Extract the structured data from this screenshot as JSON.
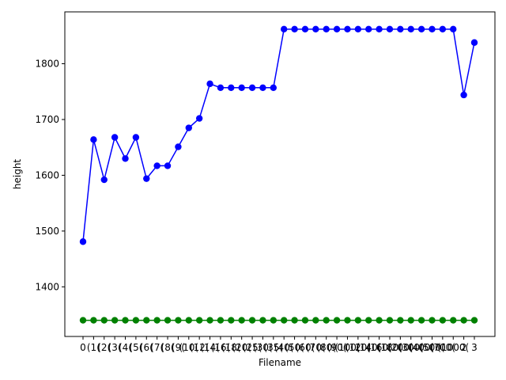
{
  "chart_data": {
    "type": "line",
    "title": "",
    "xlabel": "Filename",
    "ylabel": "height",
    "ylim": [
      1311,
      1893
    ],
    "yticks": [
      1400,
      1500,
      1600,
      1700,
      1800
    ],
    "grid": false,
    "legend": "none",
    "categories": [
      "0",
      "(1(",
      "(2(",
      "(3(",
      "(4(",
      "(5(",
      "(6(",
      "(7(",
      "(8(",
      "(9(",
      "(10(",
      "(12(",
      "(14(",
      "(16(",
      "(18(",
      "(20(",
      "(25(",
      "(30(",
      "(35(",
      "(40(",
      "(50(",
      "(60(",
      "(70(",
      "(80(",
      "(90(",
      "(100(",
      "(120(",
      "(140(",
      "(160(",
      "(180(",
      "(200(",
      "(300(",
      "(400(",
      "(500(",
      "(700(",
      "(1000(",
      "2",
      "3"
    ],
    "series": [
      {
        "color": "#0000ff",
        "values": [
          1481,
          1664,
          1592,
          1668,
          1630,
          1668,
          1594,
          1617,
          1617,
          1651,
          1685,
          1702,
          1764,
          1757,
          1757,
          1757,
          1757,
          1757,
          1757,
          1862,
          1862,
          1862,
          1862,
          1862,
          1862,
          1862,
          1862,
          1862,
          1862,
          1862,
          1862,
          1862,
          1862,
          1862,
          1862,
          1862,
          1744,
          1838
        ]
      },
      {
        "color": "#008000",
        "values": [
          1340,
          1340,
          1340,
          1340,
          1340,
          1340,
          1340,
          1340,
          1340,
          1340,
          1340,
          1340,
          1340,
          1340,
          1340,
          1340,
          1340,
          1340,
          1340,
          1340,
          1340,
          1340,
          1340,
          1340,
          1340,
          1340,
          1340,
          1340,
          1340,
          1340,
          1340,
          1340,
          1340,
          1340,
          1340,
          1340,
          1340,
          1340
        ]
      }
    ]
  }
}
